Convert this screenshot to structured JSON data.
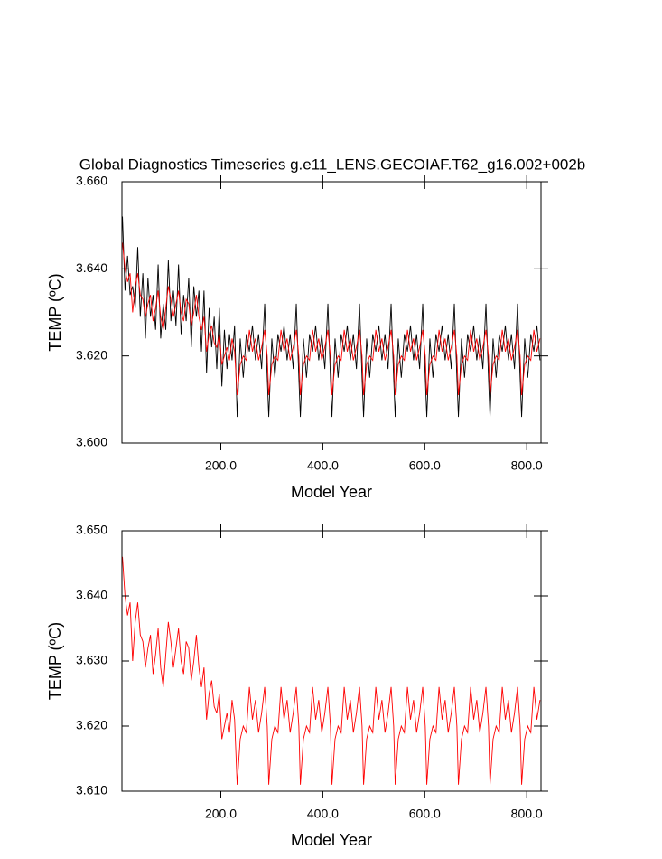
{
  "chart_data": [
    {
      "type": "line",
      "title": "Global Diagnostics Timeseries g.e11_LENS.GECOIAF.T62_g16.002+002b",
      "xlabel": "Model Year",
      "ylabel": "TEMP (ºC)",
      "x": [
        7,
        12,
        17,
        22,
        27,
        32,
        37,
        42,
        47,
        52,
        57,
        62,
        67,
        72,
        77,
        82,
        87,
        92,
        97,
        102,
        107,
        112,
        117,
        122,
        127,
        132,
        137,
        142,
        147,
        152,
        157,
        162,
        167,
        172,
        177,
        182,
        187,
        192,
        197,
        202,
        207,
        212,
        217,
        222,
        227,
        232,
        238,
        244,
        250,
        256,
        262,
        268,
        274,
        280,
        286,
        291,
        294,
        300,
        306,
        312,
        318,
        324,
        330,
        336,
        342,
        348,
        353,
        356,
        362,
        368,
        374,
        380,
        386,
        392,
        398,
        404,
        410,
        415,
        418,
        424,
        430,
        436,
        442,
        448,
        454,
        460,
        466,
        472,
        477,
        480,
        486,
        492,
        498,
        504,
        510,
        516,
        522,
        528,
        534,
        539,
        542,
        548,
        554,
        560,
        566,
        572,
        578,
        584,
        590,
        596,
        601,
        604,
        610,
        616,
        622,
        628,
        634,
        640,
        646,
        652,
        658,
        663,
        666,
        672,
        678,
        684,
        690,
        696,
        702,
        708,
        714,
        720,
        725,
        728,
        734,
        740,
        746,
        752,
        758,
        764,
        770,
        776,
        782,
        787,
        790,
        796,
        802,
        808,
        814,
        820,
        826
      ],
      "series": [
        {
          "color": "#000000",
          "values": [
            3.652,
            3.635,
            3.643,
            3.634,
            3.636,
            3.631,
            3.645,
            3.629,
            3.639,
            3.624,
            3.638,
            3.629,
            3.634,
            3.626,
            3.641,
            3.624,
            3.632,
            3.626,
            3.642,
            3.628,
            3.635,
            3.627,
            3.641,
            3.625,
            3.634,
            3.628,
            3.638,
            3.622,
            3.636,
            3.629,
            3.635,
            3.621,
            3.635,
            3.616,
            3.631,
            3.622,
            3.629,
            3.617,
            3.631,
            3.613,
            3.626,
            3.617,
            3.625,
            3.619,
            3.627,
            3.606,
            3.624,
            3.615,
            3.625,
            3.621,
            3.627,
            3.619,
            3.625,
            3.617,
            3.632,
            3.615,
            3.606,
            3.624,
            3.615,
            3.625,
            3.621,
            3.627,
            3.619,
            3.625,
            3.617,
            3.632,
            3.615,
            3.606,
            3.624,
            3.615,
            3.625,
            3.621,
            3.627,
            3.619,
            3.625,
            3.617,
            3.632,
            3.615,
            3.606,
            3.624,
            3.615,
            3.625,
            3.621,
            3.627,
            3.619,
            3.625,
            3.617,
            3.632,
            3.615,
            3.606,
            3.624,
            3.615,
            3.625,
            3.621,
            3.627,
            3.619,
            3.625,
            3.617,
            3.632,
            3.615,
            3.606,
            3.624,
            3.615,
            3.625,
            3.621,
            3.627,
            3.619,
            3.625,
            3.617,
            3.632,
            3.615,
            3.606,
            3.624,
            3.615,
            3.625,
            3.621,
            3.627,
            3.619,
            3.625,
            3.617,
            3.632,
            3.615,
            3.606,
            3.624,
            3.615,
            3.625,
            3.621,
            3.627,
            3.619,
            3.625,
            3.617,
            3.632,
            3.615,
            3.606,
            3.624,
            3.615,
            3.625,
            3.621,
            3.627,
            3.619,
            3.625,
            3.617,
            3.632,
            3.615,
            3.606,
            3.624,
            3.615,
            3.625,
            3.621,
            3.627,
            3.619
          ]
        },
        {
          "color": "#ff0000",
          "values": [
            3.646,
            3.64,
            3.637,
            3.639,
            3.63,
            3.636,
            3.639,
            3.634,
            3.633,
            3.629,
            3.632,
            3.634,
            3.628,
            3.631,
            3.635,
            3.629,
            3.626,
            3.631,
            3.636,
            3.633,
            3.629,
            3.632,
            3.635,
            3.63,
            3.628,
            3.633,
            3.632,
            3.627,
            3.63,
            3.634,
            3.629,
            3.626,
            3.629,
            3.621,
            3.625,
            3.627,
            3.623,
            3.622,
            3.625,
            3.618,
            3.62,
            3.622,
            3.619,
            3.624,
            3.621,
            3.611,
            3.618,
            3.62,
            3.619,
            3.626,
            3.621,
            3.624,
            3.619,
            3.622,
            3.626,
            3.62,
            3.611,
            3.618,
            3.62,
            3.619,
            3.626,
            3.621,
            3.624,
            3.619,
            3.622,
            3.626,
            3.62,
            3.611,
            3.618,
            3.62,
            3.619,
            3.626,
            3.621,
            3.624,
            3.619,
            3.622,
            3.626,
            3.62,
            3.611,
            3.618,
            3.62,
            3.619,
            3.626,
            3.621,
            3.624,
            3.619,
            3.622,
            3.626,
            3.62,
            3.611,
            3.618,
            3.62,
            3.619,
            3.626,
            3.621,
            3.624,
            3.619,
            3.622,
            3.626,
            3.62,
            3.611,
            3.618,
            3.62,
            3.619,
            3.626,
            3.621,
            3.624,
            3.619,
            3.622,
            3.626,
            3.62,
            3.611,
            3.618,
            3.62,
            3.619,
            3.626,
            3.621,
            3.624,
            3.619,
            3.622,
            3.626,
            3.62,
            3.611,
            3.618,
            3.62,
            3.619,
            3.626,
            3.621,
            3.624,
            3.619,
            3.622,
            3.626,
            3.62,
            3.611,
            3.618,
            3.62,
            3.619,
            3.626,
            3.621,
            3.624,
            3.619,
            3.622,
            3.626,
            3.62,
            3.611,
            3.618,
            3.62,
            3.619,
            3.626,
            3.621,
            3.624
          ]
        }
      ],
      "xlim": [
        6,
        828
      ],
      "xticks": [
        {
          "value": 200,
          "label": "200.0"
        },
        {
          "value": 400,
          "label": "400.0"
        },
        {
          "value": 600,
          "label": "600.0"
        },
        {
          "value": 800,
          "label": "800.0"
        }
      ],
      "ylim": [
        3.6,
        3.66
      ],
      "yticks": [
        {
          "value": 3.6,
          "label": "3.600"
        },
        {
          "value": 3.62,
          "label": "3.620"
        },
        {
          "value": 3.64,
          "label": "3.640"
        },
        {
          "value": 3.66,
          "label": "3.660"
        }
      ]
    },
    {
      "type": "line",
      "xlabel": "Model Year",
      "ylabel": "TEMP (ºC)",
      "x": [
        7,
        12,
        17,
        22,
        27,
        32,
        37,
        42,
        47,
        52,
        57,
        62,
        67,
        72,
        77,
        82,
        87,
        92,
        97,
        102,
        107,
        112,
        117,
        122,
        127,
        132,
        137,
        142,
        147,
        152,
        157,
        162,
        167,
        172,
        177,
        182,
        187,
        192,
        197,
        202,
        207,
        212,
        217,
        222,
        227,
        232,
        238,
        244,
        250,
        256,
        262,
        268,
        274,
        280,
        286,
        291,
        294,
        300,
        306,
        312,
        318,
        324,
        330,
        336,
        342,
        348,
        353,
        356,
        362,
        368,
        374,
        380,
        386,
        392,
        398,
        404,
        410,
        415,
        418,
        424,
        430,
        436,
        442,
        448,
        454,
        460,
        466,
        472,
        477,
        480,
        486,
        492,
        498,
        504,
        510,
        516,
        522,
        528,
        534,
        539,
        542,
        548,
        554,
        560,
        566,
        572,
        578,
        584,
        590,
        596,
        601,
        604,
        610,
        616,
        622,
        628,
        634,
        640,
        646,
        652,
        658,
        663,
        666,
        672,
        678,
        684,
        690,
        696,
        702,
        708,
        714,
        720,
        725,
        728,
        734,
        740,
        746,
        752,
        758,
        764,
        770,
        776,
        782,
        787,
        790,
        796,
        802,
        808,
        814,
        820,
        826
      ],
      "series": [
        {
          "color": "#ff0000",
          "values": [
            3.646,
            3.64,
            3.637,
            3.639,
            3.63,
            3.636,
            3.639,
            3.634,
            3.633,
            3.629,
            3.632,
            3.634,
            3.628,
            3.631,
            3.635,
            3.629,
            3.626,
            3.631,
            3.636,
            3.633,
            3.629,
            3.632,
            3.635,
            3.63,
            3.628,
            3.633,
            3.632,
            3.627,
            3.63,
            3.634,
            3.629,
            3.626,
            3.629,
            3.621,
            3.625,
            3.627,
            3.623,
            3.622,
            3.625,
            3.618,
            3.62,
            3.622,
            3.619,
            3.624,
            3.621,
            3.611,
            3.618,
            3.62,
            3.619,
            3.626,
            3.621,
            3.624,
            3.619,
            3.622,
            3.626,
            3.62,
            3.611,
            3.618,
            3.62,
            3.619,
            3.626,
            3.621,
            3.624,
            3.619,
            3.622,
            3.626,
            3.62,
            3.611,
            3.618,
            3.62,
            3.619,
            3.626,
            3.621,
            3.624,
            3.619,
            3.622,
            3.626,
            3.62,
            3.611,
            3.618,
            3.62,
            3.619,
            3.626,
            3.621,
            3.624,
            3.619,
            3.622,
            3.626,
            3.62,
            3.611,
            3.618,
            3.62,
            3.619,
            3.626,
            3.621,
            3.624,
            3.619,
            3.622,
            3.626,
            3.62,
            3.611,
            3.618,
            3.62,
            3.619,
            3.626,
            3.621,
            3.624,
            3.619,
            3.622,
            3.626,
            3.62,
            3.611,
            3.618,
            3.62,
            3.619,
            3.626,
            3.621,
            3.624,
            3.619,
            3.622,
            3.626,
            3.62,
            3.611,
            3.618,
            3.62,
            3.619,
            3.626,
            3.621,
            3.624,
            3.619,
            3.622,
            3.626,
            3.62,
            3.611,
            3.618,
            3.62,
            3.619,
            3.626,
            3.621,
            3.624,
            3.619,
            3.622,
            3.626,
            3.62,
            3.611,
            3.618,
            3.62,
            3.619,
            3.626,
            3.621,
            3.624
          ]
        }
      ],
      "xlim": [
        6,
        828
      ],
      "xticks": [
        {
          "value": 200,
          "label": "200.0"
        },
        {
          "value": 400,
          "label": "400.0"
        },
        {
          "value": 600,
          "label": "600.0"
        },
        {
          "value": 800,
          "label": "800.0"
        }
      ],
      "ylim": [
        3.61,
        3.65
      ],
      "yticks": [
        {
          "value": 3.61,
          "label": "3.610"
        },
        {
          "value": 3.62,
          "label": "3.620"
        },
        {
          "value": 3.63,
          "label": "3.630"
        },
        {
          "value": 3.64,
          "label": "3.640"
        },
        {
          "value": 3.65,
          "label": "3.650"
        }
      ]
    }
  ]
}
